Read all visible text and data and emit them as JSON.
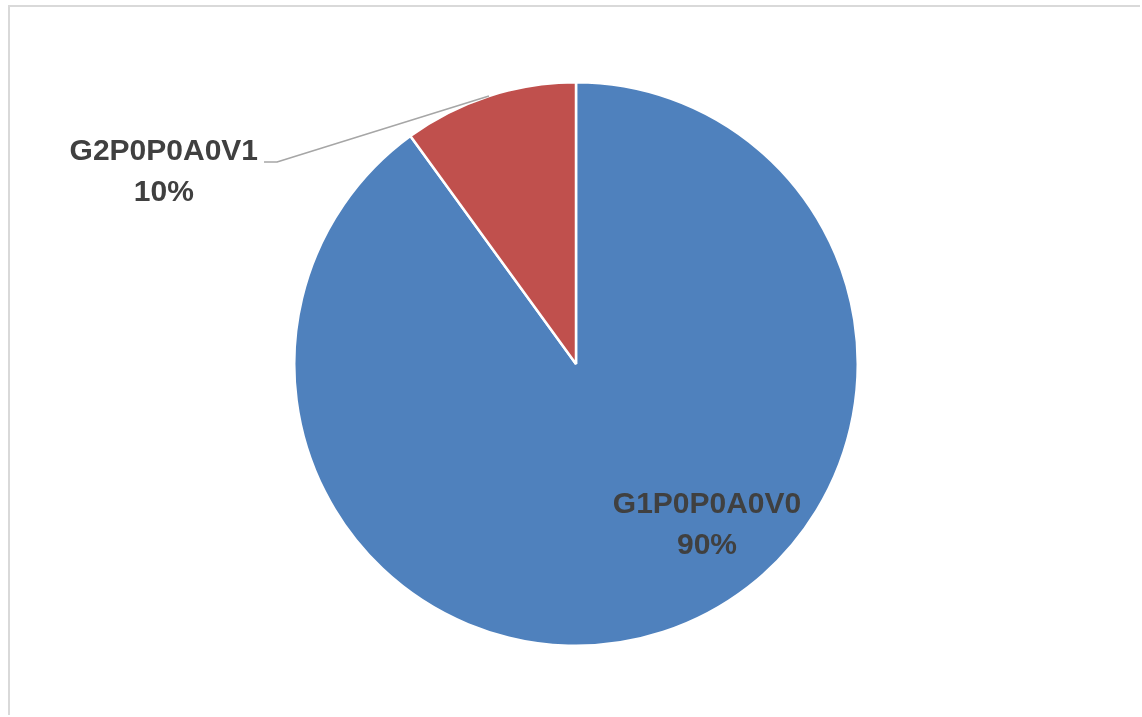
{
  "chart_data": {
    "type": "pie",
    "categories": [
      "G1P0P0A0V0",
      "G2P0P0A0V1"
    ],
    "values": [
      90,
      10
    ],
    "colors": [
      "#4f81bd",
      "#c0504d"
    ],
    "value_labels": [
      "90%",
      "10%"
    ],
    "legend": false
  }
}
